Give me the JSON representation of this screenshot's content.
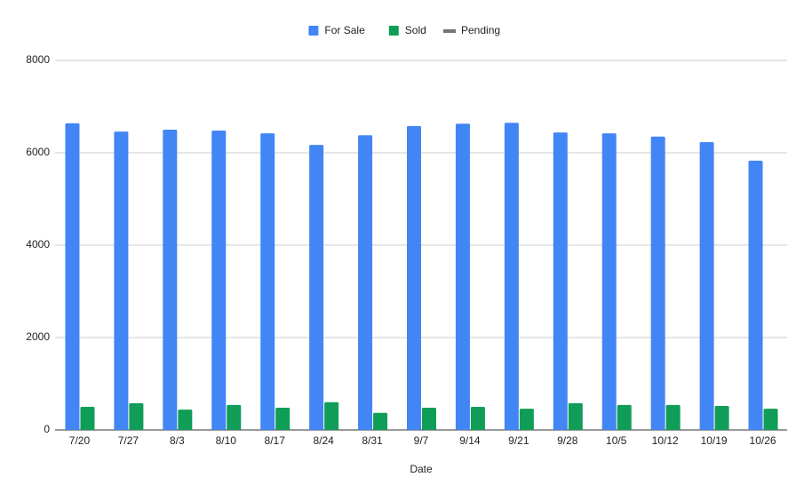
{
  "chart_data": {
    "type": "bar",
    "x_label": "Date",
    "categories": [
      "7/20",
      "7/27",
      "8/3",
      "8/10",
      "8/17",
      "8/24",
      "8/31",
      "9/7",
      "9/14",
      "9/21",
      "9/28",
      "10/5",
      "10/12",
      "10/19",
      "10/26"
    ],
    "series": [
      {
        "name": "For Sale",
        "color": "#4285f4",
        "values": [
          6640,
          6460,
          6500,
          6480,
          6420,
          6170,
          6380,
          6580,
          6630,
          6650,
          6440,
          6420,
          6350,
          6230,
          5830
        ]
      },
      {
        "name": "Sold",
        "color": "#0f9d58",
        "values": [
          500,
          580,
          440,
          540,
          480,
          600,
          370,
          480,
          500,
          460,
          580,
          540,
          540,
          520,
          460
        ]
      },
      {
        "name": "Pending",
        "color": "#757575",
        "type": "line",
        "values": [
          null,
          null,
          null,
          null,
          null,
          null,
          null,
          null,
          null,
          null,
          null,
          null,
          null,
          null,
          null
        ]
      }
    ],
    "ylim": [
      0,
      8000
    ],
    "yticks": [
      0,
      2000,
      4000,
      6000,
      8000
    ],
    "grid": true,
    "legend": "top"
  }
}
